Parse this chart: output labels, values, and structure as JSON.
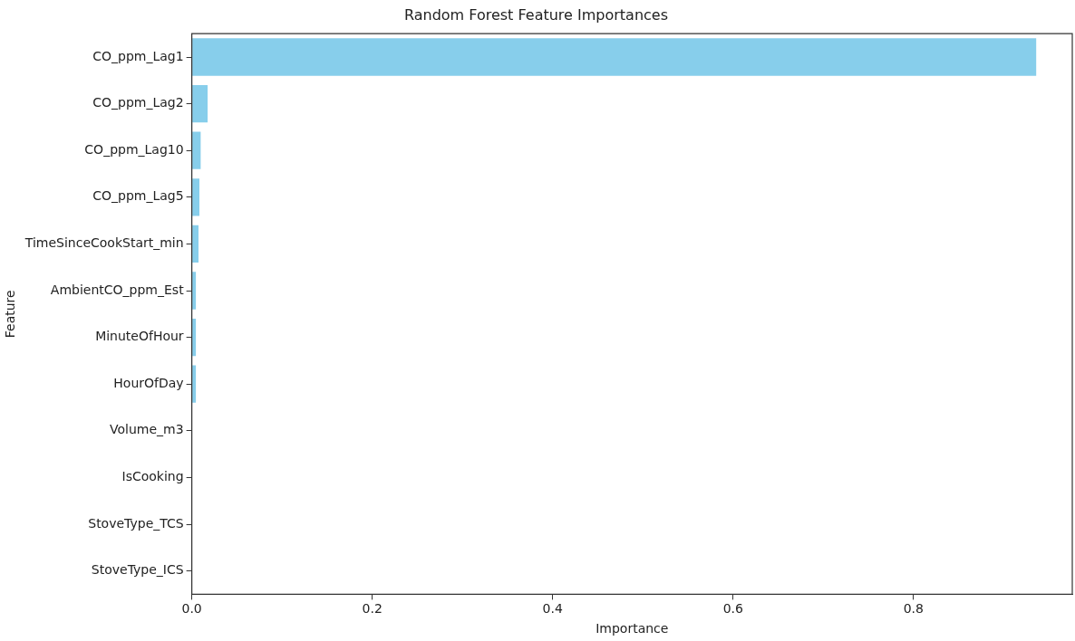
{
  "chart_data": {
    "type": "bar",
    "orientation": "horizontal",
    "title": "Random Forest Feature Importances",
    "xlabel": "Importance",
    "ylabel": "Feature",
    "categories": [
      "CO_ppm_Lag1",
      "CO_ppm_Lag2",
      "CO_ppm_Lag10",
      "CO_ppm_Lag5",
      "TimeSinceCookStart_min",
      "AmbientCO_ppm_Est",
      "MinuteOfHour",
      "HourOfDay",
      "Volume_m3",
      "IsCooking",
      "StoveType_TCS",
      "StoveType_ICS"
    ],
    "values": [
      0.936,
      0.0175,
      0.0098,
      0.0084,
      0.0074,
      0.0045,
      0.0045,
      0.0045,
      0,
      0,
      0,
      0
    ],
    "color": "#87ceeb",
    "xlim": [
      0,
      0.976
    ],
    "xticks": [
      {
        "value": 0,
        "label": "0.0"
      },
      {
        "value": 0.2,
        "label": "0.2"
      },
      {
        "value": 0.4,
        "label": "0.4"
      },
      {
        "value": 0.6,
        "label": "0.6"
      },
      {
        "value": 0.8,
        "label": "0.8"
      }
    ],
    "grid": false,
    "legend": false
  }
}
